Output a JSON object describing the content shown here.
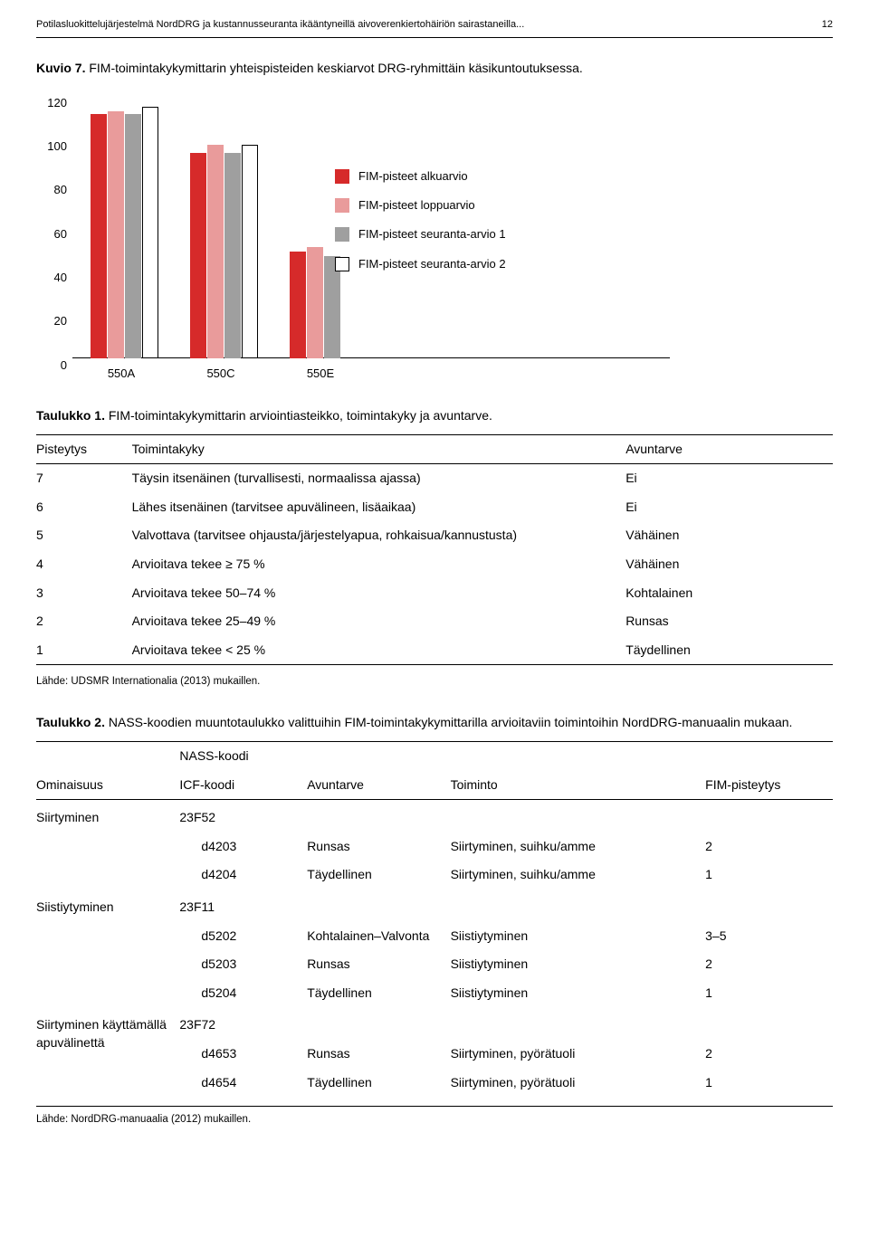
{
  "header": {
    "running_title": "Potilasluokittelujärjestelmä NordDRG ja kustannusseuranta ikääntyneillä aivoverenkiertohäiriön sairastaneilla...",
    "page_number": "12"
  },
  "figure7": {
    "label": "Kuvio 7.",
    "caption": "FIM-toimintakykymittarin yhteispisteiden keskiarvot DRG-ryhmittäin käsikuntoutuksessa.",
    "type": "bar",
    "categories": [
      "550A",
      "550C",
      "550E"
    ],
    "series": [
      {
        "name": "FIM-pisteet alkuarvio",
        "color": "#d62a2a",
        "border": "#d62a2a",
        "values": [
          111,
          93,
          48
        ]
      },
      {
        "name": "FIM-pisteet loppuarvio",
        "color": "#e99b9b",
        "border": "#e99b9b",
        "values": [
          112,
          97,
          50
        ]
      },
      {
        "name": "FIM-pisteet seuranta-arvio 1",
        "color": "#9f9f9f",
        "border": "#9f9f9f",
        "values": [
          111,
          93,
          46
        ]
      },
      {
        "name": "FIM-pisteet seuranta-arvio 2",
        "color": "#ffffff",
        "border": "#000000",
        "values": [
          114,
          97,
          0
        ]
      }
    ],
    "ylim": [
      0,
      120
    ],
    "ytick_step": 20,
    "background_color": "#ffffff",
    "grid_color": "#000000",
    "label_fontsize": 13
  },
  "table1": {
    "label": "Taulukko 1.",
    "caption": "FIM-toimintakykymittarin arviointiasteikko, toimintakyky ja avuntarve.",
    "columns": [
      "Pisteytys",
      "Toimintakyky",
      "Avuntarve"
    ],
    "rows": [
      [
        "7",
        "Täysin itsenäinen (turvallisesti, normaalissa ajassa)",
        "Ei"
      ],
      [
        "6",
        "Lähes itsenäinen (tarvitsee apuvälineen, lisäaikaa)",
        "Ei"
      ],
      [
        "5",
        "Valvottava (tarvitsee ohjausta/järjestelyapua, rohkaisua/kannustusta)",
        "Vähäinen"
      ],
      [
        "4",
        "Arvioitava tekee ≥ 75 %",
        "Vähäinen"
      ],
      [
        "3",
        "Arvioitava tekee 50–74 %",
        "Kohtalainen"
      ],
      [
        "2",
        "Arvioitava tekee 25–49 %",
        "Runsas"
      ],
      [
        "1",
        "Arvioitava tekee < 25 %",
        "Täydellinen"
      ]
    ],
    "source": "Lähde: UDSMR Internationalia (2013) mukaillen."
  },
  "table2": {
    "label": "Taulukko 2.",
    "caption": "NASS-koodien muuntotaulukko valittuihin FIM-toimintakykymittarilla arvioitaviin toimintoihin NordDRG-manuaalin mukaan.",
    "header": {
      "col1": "Ominaisuus",
      "col2a": "NASS-koodi",
      "col2b": "ICF-koodi",
      "col3": "Avuntarve",
      "col4": "Toiminto",
      "col5": "FIM-pisteytys"
    },
    "groups": [
      {
        "ominaisuus": "Siirtyminen",
        "nass": "23F52",
        "rows": [
          {
            "icf": "d4203",
            "avuntarve": "Runsas",
            "toiminto": "Siirtyminen, suihku/amme",
            "fim": "2"
          },
          {
            "icf": "d4204",
            "avuntarve": "Täydellinen",
            "toiminto": "Siirtyminen, suihku/amme",
            "fim": "1"
          }
        ]
      },
      {
        "ominaisuus": "Siistiytyminen",
        "nass": "23F11",
        "rows": [
          {
            "icf": "d5202",
            "avuntarve": "Kohtalainen–Valvonta",
            "toiminto": "Siistiytyminen",
            "fim": "3–5"
          },
          {
            "icf": "d5203",
            "avuntarve": "Runsas",
            "toiminto": "Siistiytyminen",
            "fim": "2"
          },
          {
            "icf": "d5204",
            "avuntarve": "Täydellinen",
            "toiminto": "Siistiytyminen",
            "fim": "1"
          }
        ]
      },
      {
        "ominaisuus": "Siirtyminen käyttämällä apuvälinettä",
        "nass": "23F72",
        "rows": [
          {
            "icf": "d4653",
            "avuntarve": "Runsas",
            "toiminto": "Siirtyminen, pyörätuoli",
            "fim": "2"
          },
          {
            "icf": "d4654",
            "avuntarve": "Täydellinen",
            "toiminto": "Siirtyminen, pyörätuoli",
            "fim": "1"
          }
        ]
      }
    ],
    "source": "Lähde: NordDRG-manuaalia (2012) mukaillen."
  }
}
